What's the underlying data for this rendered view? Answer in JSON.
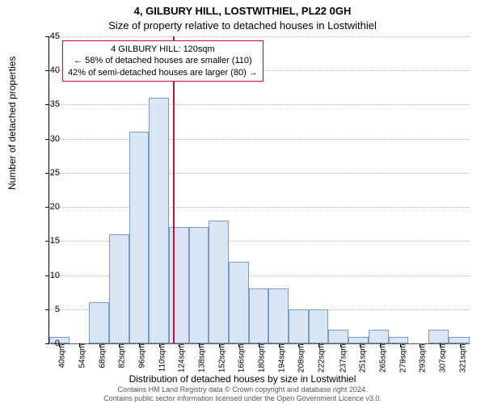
{
  "chart": {
    "type": "histogram",
    "title_main": "4, GILBURY HILL, LOSTWITHIEL, PL22 0GH",
    "title_sub": "Size of property relative to detached houses in Lostwithiel",
    "xlabel": "Distribution of detached houses by size in Lostwithiel",
    "ylabel": "Number of detached properties",
    "background_color": "#ffffff",
    "grid_color": "#b0b0b0",
    "bar_fill": "#dbe6f4",
    "bar_stroke": "#7a9ac7",
    "ref_line_color": "#c8102e",
    "x_min": 33,
    "x_max": 328,
    "y_min": 0,
    "y_max": 45,
    "y_ticks": [
      0,
      5,
      10,
      15,
      20,
      25,
      30,
      35,
      40,
      45
    ],
    "x_ticks": [
      40,
      54,
      68,
      82,
      96,
      110,
      124,
      138,
      152,
      166,
      180,
      194,
      208,
      222,
      237,
      251,
      265,
      279,
      293,
      307,
      321
    ],
    "x_tick_labels": [
      "40sqm",
      "54sqm",
      "68sqm",
      "82sqm",
      "96sqm",
      "110sqm",
      "124sqm",
      "138sqm",
      "152sqm",
      "166sqm",
      "180sqm",
      "194sqm",
      "208sqm",
      "222sqm",
      "237sqm",
      "251sqm",
      "265sqm",
      "279sqm",
      "293sqm",
      "307sqm",
      "321sqm"
    ],
    "bars": [
      {
        "x0": 33,
        "x1": 47,
        "y": 1
      },
      {
        "x0": 47,
        "x1": 61,
        "y": 0
      },
      {
        "x0": 61,
        "x1": 75,
        "y": 6
      },
      {
        "x0": 75,
        "x1": 89,
        "y": 16
      },
      {
        "x0": 89,
        "x1": 103,
        "y": 31
      },
      {
        "x0": 103,
        "x1": 117,
        "y": 36
      },
      {
        "x0": 117,
        "x1": 131,
        "y": 17
      },
      {
        "x0": 131,
        "x1": 145,
        "y": 17
      },
      {
        "x0": 145,
        "x1": 159,
        "y": 18
      },
      {
        "x0": 159,
        "x1": 173,
        "y": 12
      },
      {
        "x0": 173,
        "x1": 187,
        "y": 8
      },
      {
        "x0": 187,
        "x1": 201,
        "y": 8
      },
      {
        "x0": 201,
        "x1": 215,
        "y": 5
      },
      {
        "x0": 215,
        "x1": 229,
        "y": 5
      },
      {
        "x0": 229,
        "x1": 243,
        "y": 2
      },
      {
        "x0": 243,
        "x1": 257,
        "y": 1
      },
      {
        "x0": 257,
        "x1": 271,
        "y": 2
      },
      {
        "x0": 271,
        "x1": 285,
        "y": 1
      },
      {
        "x0": 285,
        "x1": 299,
        "y": 0
      },
      {
        "x0": 299,
        "x1": 313,
        "y": 2
      },
      {
        "x0": 313,
        "x1": 328,
        "y": 1
      }
    ],
    "ref_line_x": 120,
    "annotation": {
      "line1": "4 GILBURY HILL: 120sqm",
      "line2": "← 58% of detached houses are smaller (110)",
      "line3": "42% of semi-detached houses are larger (80) →"
    },
    "footer_line1": "Contains HM Land Registry data © Crown copyright and database right 2024.",
    "footer_line2": "Contains public sector information licensed under the Open Government Licence v3.0."
  }
}
